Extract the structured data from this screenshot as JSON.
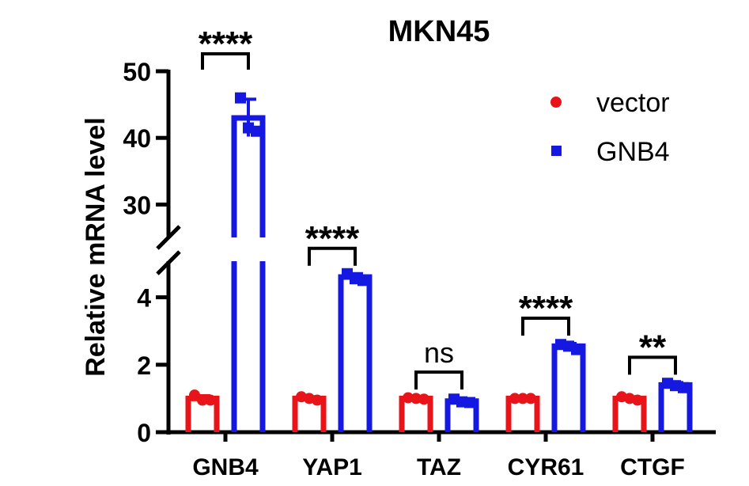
{
  "chart_data": {
    "type": "bar",
    "title": "MKN45",
    "ylabel": "Relative mRNA level",
    "xlabel": "",
    "categories": [
      "GNB4",
      "YAP1",
      "TAZ",
      "CYR61",
      "CTGF"
    ],
    "series": [
      {
        "name": "vector",
        "color": "#e8141a",
        "marker": "circle",
        "values": [
          1.0,
          1.0,
          1.0,
          1.0,
          1.0
        ]
      },
      {
        "name": "GNB4",
        "color": "#1418e0",
        "marker": "square",
        "values": [
          43.0,
          4.6,
          0.92,
          2.55,
          1.4
        ]
      }
    ],
    "points": {
      "vector": [
        [
          1.1,
          0.95,
          0.95
        ],
        [
          1.05,
          1.0,
          0.95
        ],
        [
          1.02,
          1.0,
          0.98
        ],
        [
          1.0,
          1.0,
          1.0
        ],
        [
          1.05,
          1.0,
          0.95
        ]
      ],
      "GNB4": [
        [
          46.0,
          41.5,
          41.0
        ],
        [
          4.7,
          4.55,
          4.5
        ],
        [
          0.98,
          0.9,
          0.88
        ],
        [
          2.6,
          2.55,
          2.45
        ],
        [
          1.45,
          1.38,
          1.32
        ]
      ]
    },
    "error": {
      "vector": [
        0.08,
        0.05,
        0.03,
        0.02,
        0.05
      ],
      "GNB4": [
        2.8,
        0.1,
        0.05,
        0.08,
        0.07
      ]
    },
    "significance": [
      "****",
      "****",
      "ns",
      "****",
      "**"
    ],
    "y_axis": {
      "lower_ticks": [
        0,
        2,
        4
      ],
      "upper_ticks": [
        30,
        40,
        50
      ],
      "broken": true,
      "lower_range": [
        0,
        5
      ],
      "upper_range": [
        25,
        50
      ]
    },
    "legend_position": "top-right",
    "grid": false
  }
}
